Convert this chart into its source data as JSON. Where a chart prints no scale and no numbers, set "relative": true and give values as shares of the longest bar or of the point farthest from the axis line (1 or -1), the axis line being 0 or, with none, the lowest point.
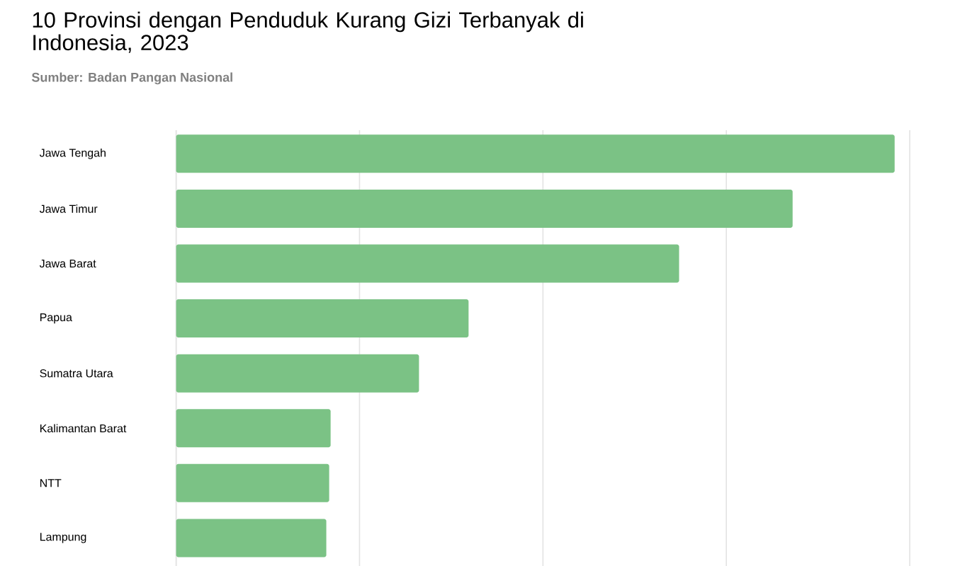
{
  "chart_data": {
    "type": "bar",
    "orientation": "horizontal",
    "relative": true,
    "title": "10 Provinsi dengan Penduduk Kurang Gizi Terbanyak di Indonesia, 2023",
    "subtitle": "Sumber: Badan Pangan Nasional",
    "categories": [
      "Jawa Tengah",
      "Jawa Timur",
      "Jawa Barat",
      "Papua",
      "Sumatra Utara",
      "Kalimantan Barat",
      "NTT",
      "Lampung"
    ],
    "values": [
      1,
      0.858,
      0.7,
      0.407,
      0.338,
      0.215,
      0.213,
      0.209
    ],
    "color": "#7bc285",
    "grid": "x"
  }
}
